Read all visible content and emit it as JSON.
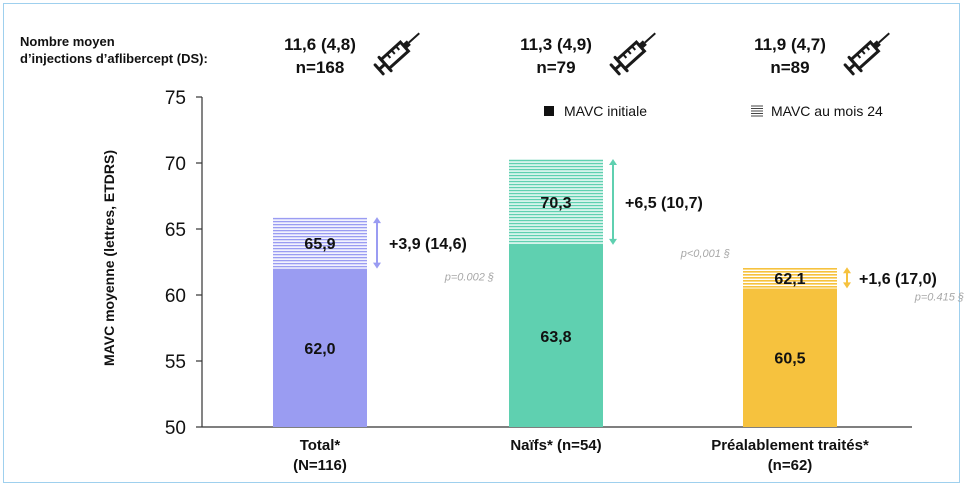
{
  "chart_data": {
    "type": "bar",
    "ylabel": "MAVC moyenne (lettres, ETDRS)",
    "ylim": [
      50,
      75
    ],
    "yticks": [
      50,
      55,
      60,
      65,
      70,
      75
    ],
    "injections_header": "Nombre moyen d’injections d’aflibercept (DS):",
    "legend": {
      "position": "top-right",
      "initial_label": "MAVC initiale",
      "month24_label": "MAVC au mois 24"
    },
    "groups": [
      {
        "category": "Total*",
        "n_label": "(N=116)",
        "injections": "11,6 (4,8)",
        "injections_n": "n=168",
        "initial": 62.0,
        "initial_label": "62,0",
        "month24": 65.9,
        "month24_label": "65,9",
        "change_label": "+3,9 (14,6)",
        "p_label": "p=0.002 §",
        "color": "#9a9cf2",
        "arrow_color": "#9a9cf2"
      },
      {
        "category": "Naïfs* (n=54)",
        "n_label": "",
        "injections": "11,3 (4,9)",
        "injections_n": "n=79",
        "initial": 63.8,
        "initial_label": "63,8",
        "month24": 70.3,
        "month24_label": "70,3",
        "change_label": "+6,5 (10,7)",
        "p_label": "p<0,001 §",
        "color": "#5fd0b0",
        "arrow_color": "#5fd0b0"
      },
      {
        "category": "Préalablement traités*",
        "n_label": "(n=62)",
        "injections": "11,9 (4,7)",
        "injections_n": "n=89",
        "initial": 60.5,
        "initial_label": "60,5",
        "month24": 62.1,
        "month24_label": "62,1",
        "change_label": "+1,6 (17,0)",
        "p_label": "p=0.415 §",
        "color": "#f6c23e",
        "arrow_color": "#f6c23e"
      }
    ]
  }
}
